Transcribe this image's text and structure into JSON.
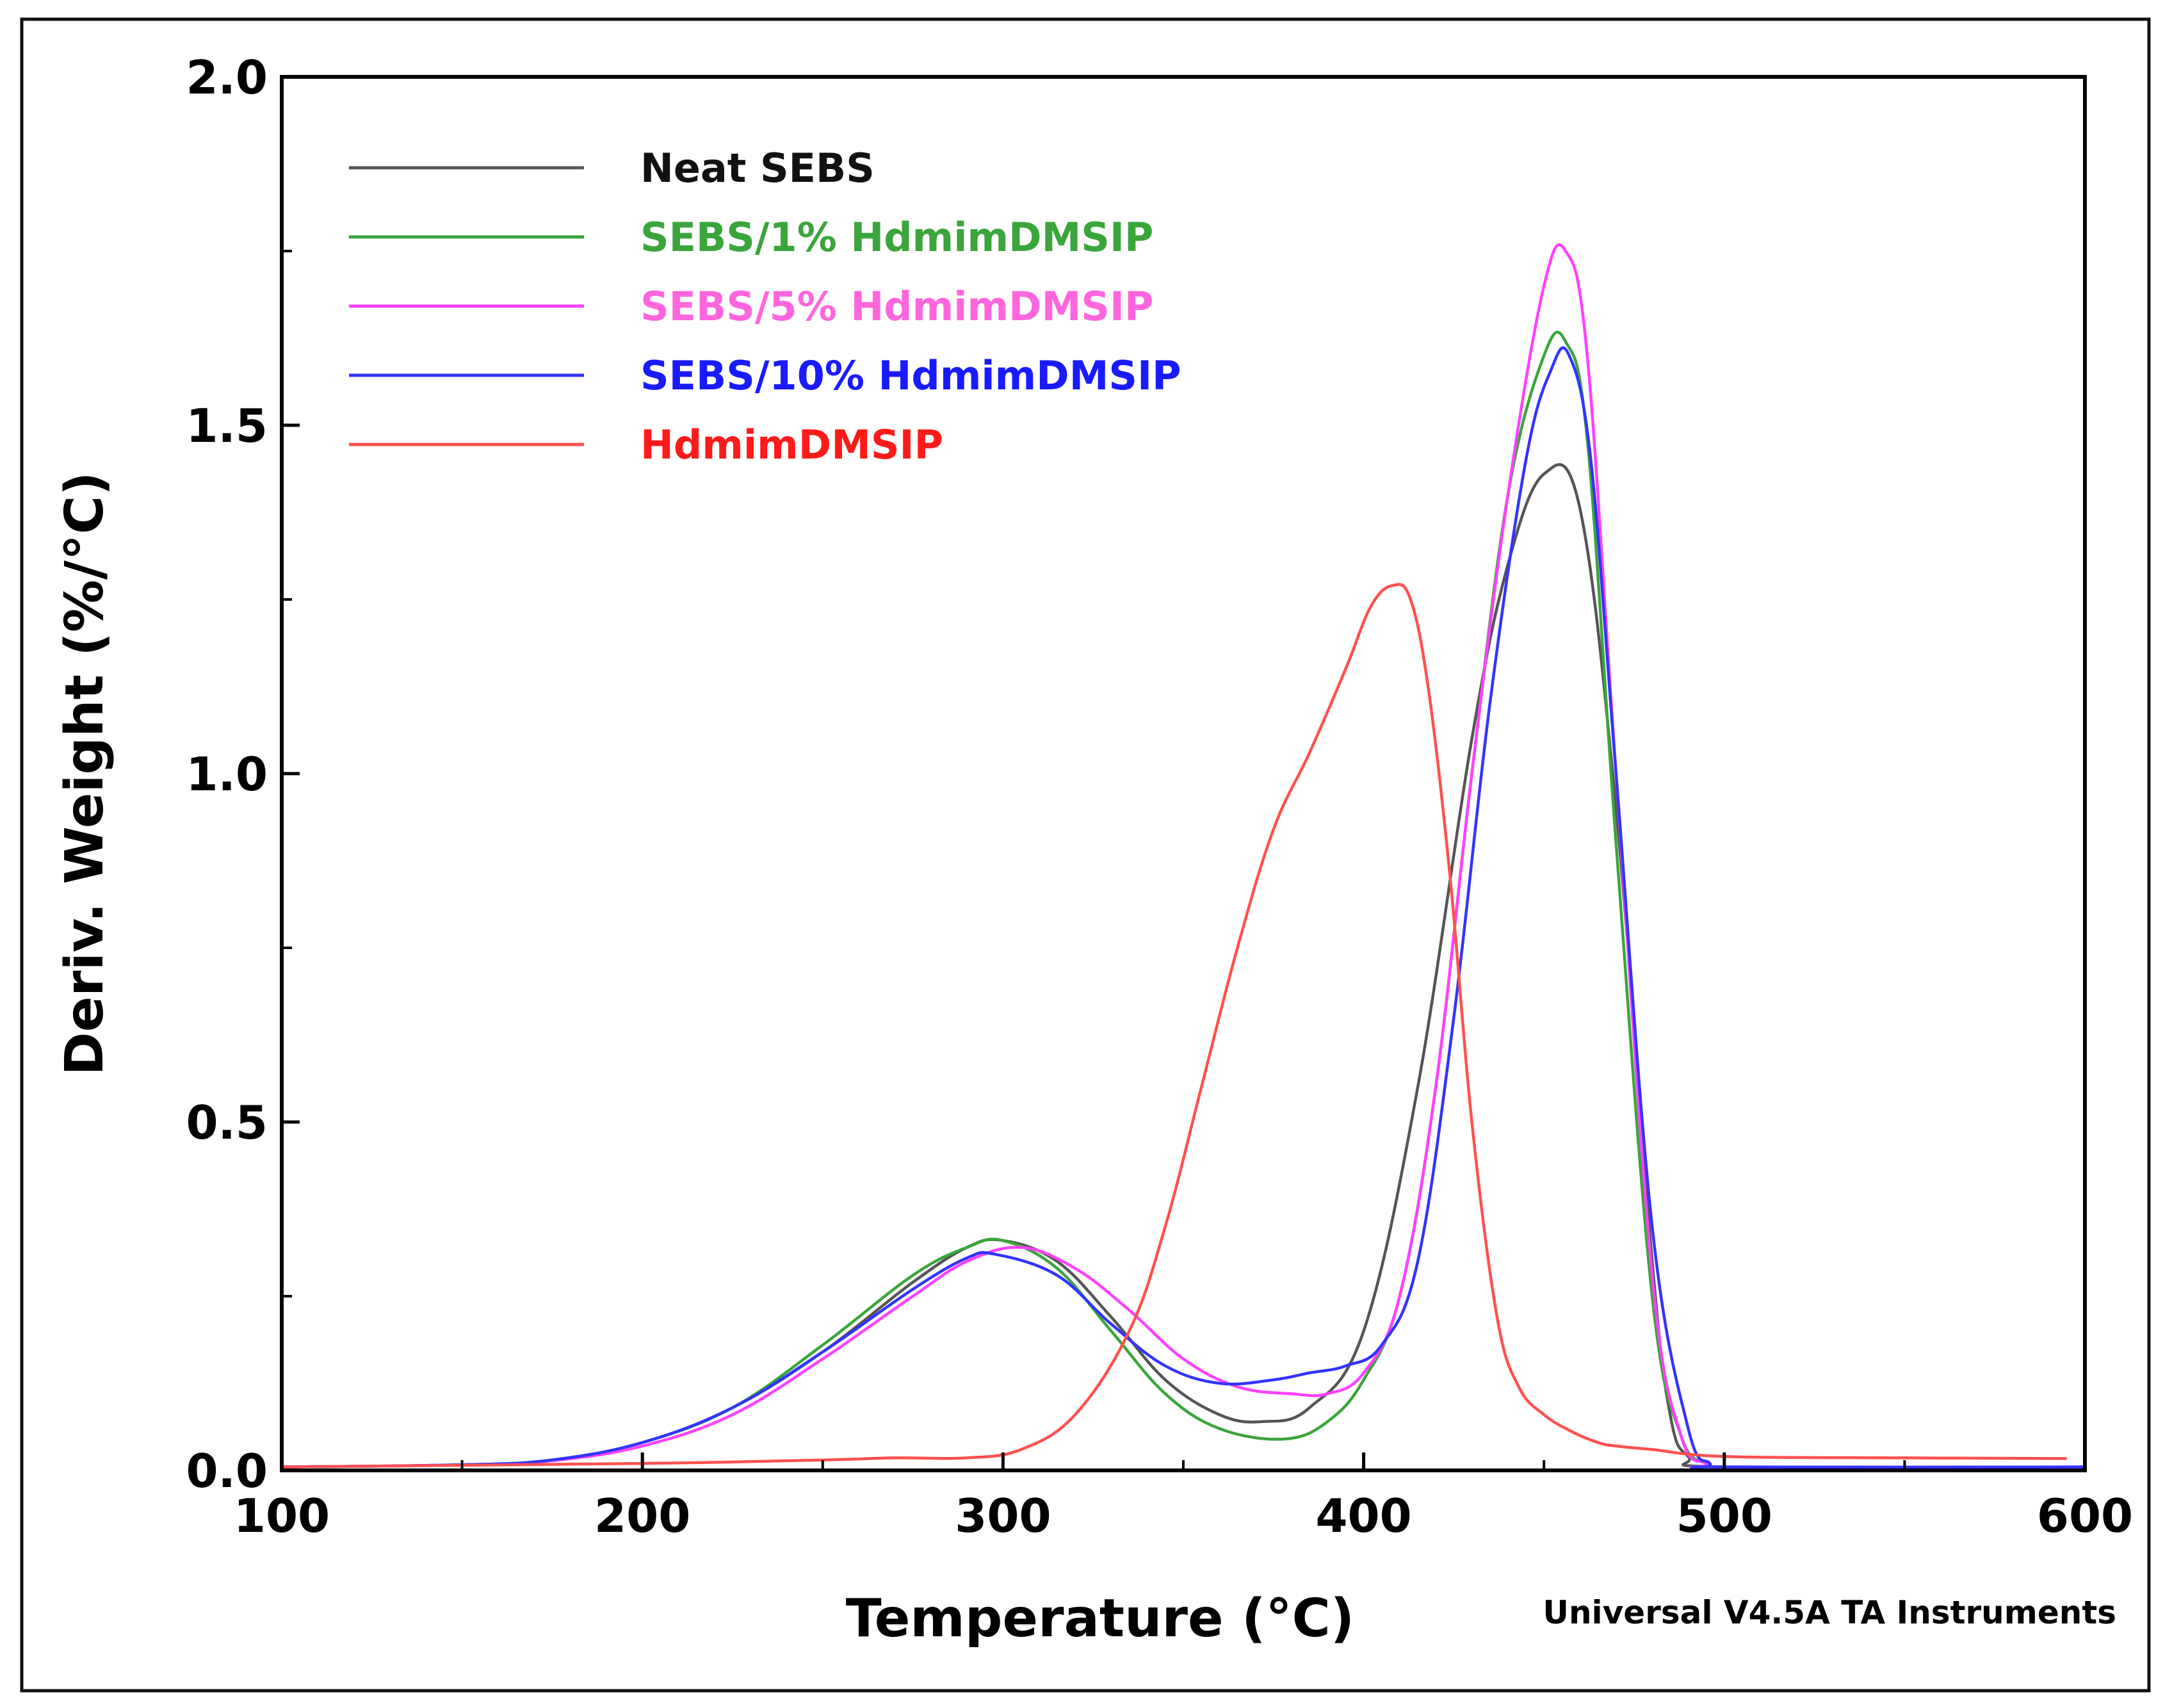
{
  "chart_data": {
    "type": "line",
    "title": "",
    "xlabel": "Temperature (°C)",
    "ylabel": "Deriv. Weight (%/°C)",
    "xlim": [
      100,
      600
    ],
    "ylim": [
      0,
      2
    ],
    "xticks": [
      100,
      200,
      300,
      400,
      500,
      600
    ],
    "yticks": [
      0,
      0.5,
      1,
      1.5,
      2
    ],
    "xtick_labels": [
      "100",
      "200",
      "300",
      "400",
      "500",
      "600"
    ],
    "ytick_labels": [
      "0.0",
      "0.5",
      "1.0",
      "1.5",
      "2.0"
    ],
    "grid": false,
    "legend_position": "top-left",
    "footer_note": "Universal V4.5A TA Instruments",
    "series": [
      {
        "name": "Neat SEBS",
        "color": "#555555",
        "label_color": "#111111",
        "x": [
          100,
          150,
          175,
          200,
          225,
          250,
          275,
          290,
          300,
          315,
          330,
          345,
          360,
          372,
          385,
          400,
          415,
          430,
          440,
          450,
          460,
          470,
          480,
          485,
          490,
          500,
          600
        ],
        "y": [
          0.005,
          0.008,
          0.015,
          0.04,
          0.09,
          0.17,
          0.27,
          0.32,
          0.33,
          0.3,
          0.22,
          0.13,
          0.08,
          0.07,
          0.09,
          0.2,
          0.55,
          1.05,
          1.3,
          1.43,
          1.38,
          0.95,
          0.3,
          0.08,
          0.02,
          0.005,
          0.005
        ]
      },
      {
        "name": "SEBS/1% HdmimDMSIP",
        "color": "#3aa53a",
        "label_color": "#3aa53a",
        "x": [
          100,
          150,
          175,
          200,
          225,
          250,
          275,
          290,
          300,
          315,
          330,
          345,
          360,
          378,
          390,
          400,
          410,
          420,
          430,
          440,
          450,
          456,
          462,
          470,
          480,
          488,
          495,
          500,
          600
        ],
        "y": [
          0.005,
          0.008,
          0.015,
          0.04,
          0.09,
          0.18,
          0.28,
          0.32,
          0.33,
          0.29,
          0.2,
          0.11,
          0.06,
          0.045,
          0.07,
          0.13,
          0.25,
          0.55,
          1.0,
          1.4,
          1.6,
          1.62,
          1.48,
          0.9,
          0.25,
          0.05,
          0.01,
          0.005,
          0.005
        ]
      },
      {
        "name": "SEBS/5% HdmimDMSIP",
        "color": "#ff40ff",
        "label_color": "#ff66dd",
        "x": [
          100,
          150,
          175,
          200,
          225,
          250,
          275,
          290,
          305,
          320,
          335,
          350,
          365,
          380,
          390,
          400,
          410,
          420,
          430,
          440,
          450,
          456,
          462,
          470,
          480,
          488,
          495,
          500,
          600
        ],
        "y": [
          0.005,
          0.008,
          0.014,
          0.035,
          0.08,
          0.16,
          0.25,
          0.3,
          0.32,
          0.29,
          0.23,
          0.16,
          0.12,
          0.11,
          0.11,
          0.14,
          0.25,
          0.55,
          1.0,
          1.4,
          1.7,
          1.75,
          1.6,
          1.0,
          0.28,
          0.05,
          0.01,
          0.005,
          0.005
        ]
      },
      {
        "name": "SEBS/10% HdmimDMSIP",
        "color": "#3333ff",
        "label_color": "#1a1aff",
        "x": [
          100,
          150,
          175,
          200,
          225,
          250,
          275,
          290,
          298,
          315,
          330,
          345,
          360,
          375,
          385,
          395,
          405,
          415,
          425,
          435,
          445,
          452,
          457,
          463,
          470,
          480,
          490,
          496,
          500,
          600
        ],
        "y": [
          0.005,
          0.008,
          0.015,
          0.04,
          0.09,
          0.17,
          0.26,
          0.305,
          0.31,
          0.28,
          0.21,
          0.15,
          0.125,
          0.13,
          0.14,
          0.15,
          0.18,
          0.3,
          0.65,
          1.1,
          1.45,
          1.58,
          1.6,
          1.45,
          1.0,
          0.35,
          0.06,
          0.01,
          0.005,
          0.005
        ]
      },
      {
        "name": "HdmimDMSIP",
        "color": "#ff5050",
        "label_color": "#ff1a1a",
        "x": [
          100,
          200,
          250,
          270,
          290,
          305,
          320,
          335,
          345,
          355,
          365,
          375,
          385,
          395,
          402,
          408,
          413,
          418,
          424,
          430,
          437,
          443,
          450,
          458,
          465,
          470,
          480,
          500,
          550,
          595
        ],
        "y": [
          0.005,
          0.01,
          0.015,
          0.018,
          0.018,
          0.03,
          0.08,
          0.2,
          0.35,
          0.55,
          0.75,
          0.92,
          1.03,
          1.15,
          1.24,
          1.27,
          1.25,
          1.12,
          0.85,
          0.5,
          0.22,
          0.12,
          0.08,
          0.055,
          0.04,
          0.035,
          0.03,
          0.02,
          0.018,
          0.017
        ]
      }
    ]
  }
}
